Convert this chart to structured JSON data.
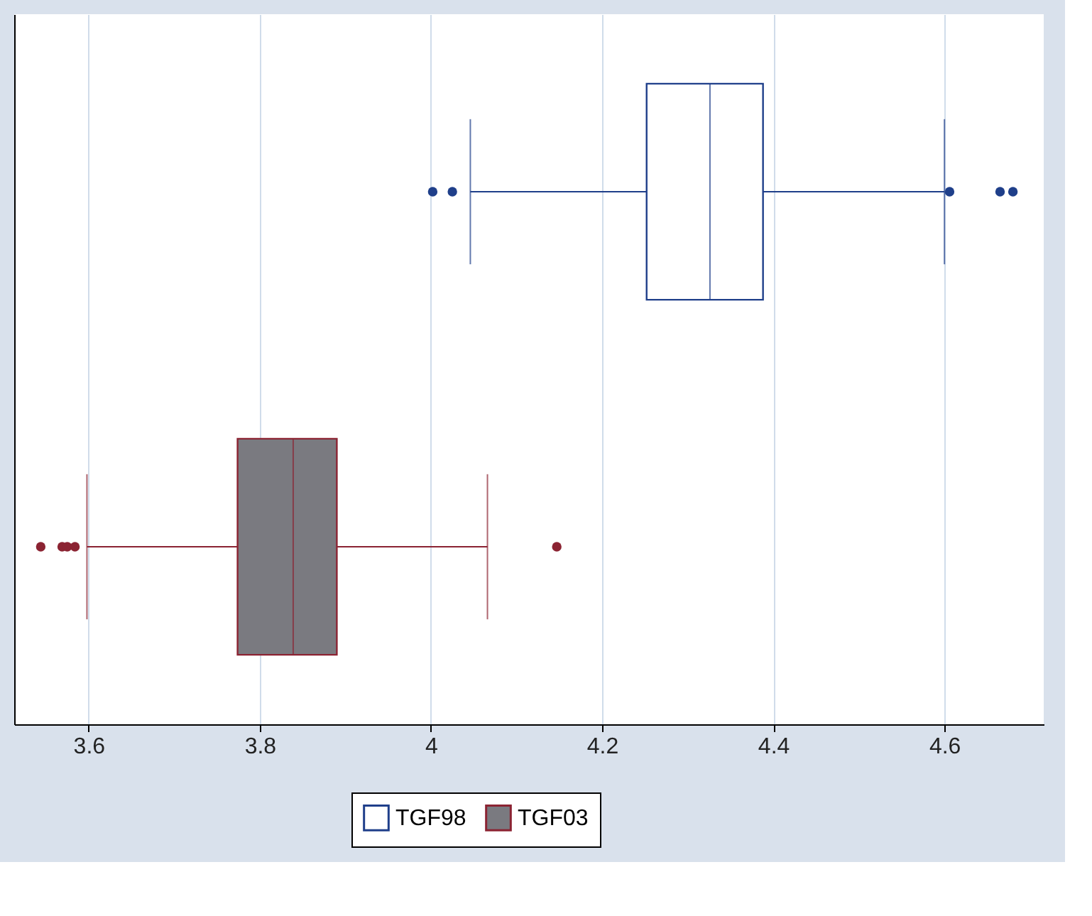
{
  "chart_data": {
    "type": "box",
    "orientation": "horizontal",
    "categories": [
      null,
      null
    ],
    "colors": [
      "#ffffff",
      "#7a7a80"
    ],
    "series": [
      {
        "name": "TGF98",
        "color": "#1f3f8a",
        "boxes": [
          {
            "low": 4.046,
            "q1": 4.252,
            "median": 4.326,
            "q3": 4.388,
            "high": 4.6,
            "outliers": [
              4.002,
              4.025,
              4.606,
              4.665,
              4.68
            ]
          },
          null
        ]
      },
      {
        "name": "TGF03",
        "color": "#8b2332",
        "boxes": [
          null,
          {
            "low": 3.598,
            "q1": 3.774,
            "median": 3.839,
            "q3": 3.89,
            "high": 4.066,
            "outliers": [
              3.544,
              3.569,
              3.575,
              3.584,
              4.147
            ]
          }
        ]
      }
    ],
    "xlim": [
      3.513,
      4.716
    ],
    "xticks": [
      3.6,
      3.8,
      4,
      4.2,
      4.4,
      4.6
    ],
    "grid": "x",
    "legend": "bottom",
    "tick_labels": "x"
  }
}
